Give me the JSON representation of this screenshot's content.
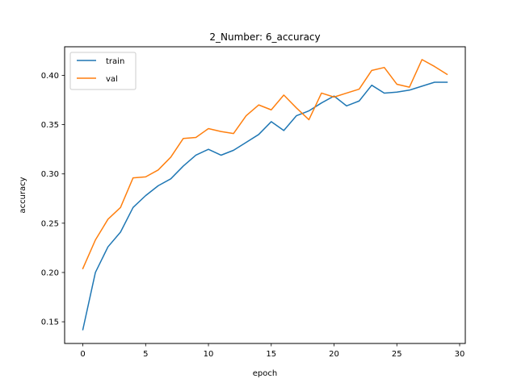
{
  "chart_data": {
    "type": "line",
    "title": "2_Number: 6_accuracy",
    "xlabel": "epoch",
    "ylabel": "accuracy",
    "xlim": [
      -1.45,
      30.45
    ],
    "ylim": [
      0.128,
      0.429
    ],
    "xticks": [
      0,
      5,
      10,
      15,
      20,
      25,
      30
    ],
    "yticks": [
      0.15,
      0.2,
      0.25,
      0.3,
      0.35,
      0.4
    ],
    "xtick_labels": [
      "0",
      "5",
      "10",
      "15",
      "20",
      "25",
      "30"
    ],
    "ytick_labels": [
      "0.15",
      "0.20",
      "0.25",
      "0.30",
      "0.35",
      "0.40"
    ],
    "grid": false,
    "legend_position": "top-left",
    "x": [
      0,
      1,
      2,
      3,
      4,
      5,
      6,
      7,
      8,
      9,
      10,
      11,
      12,
      13,
      14,
      15,
      16,
      17,
      18,
      19,
      20,
      21,
      22,
      23,
      24,
      25,
      26,
      27,
      28,
      29
    ],
    "series": [
      {
        "name": "train",
        "color": "#1f77b4",
        "values": [
          0.142,
          0.2,
          0.226,
          0.241,
          0.266,
          0.278,
          0.288,
          0.295,
          0.308,
          0.319,
          0.325,
          0.319,
          0.324,
          0.332,
          0.34,
          0.353,
          0.344,
          0.359,
          0.364,
          0.372,
          0.379,
          0.369,
          0.374,
          0.39,
          0.382,
          0.383,
          0.385,
          0.389,
          0.393,
          0.393
        ]
      },
      {
        "name": "val",
        "color": "#ff7f0e",
        "values": [
          0.204,
          0.233,
          0.254,
          0.266,
          0.296,
          0.297,
          0.304,
          0.317,
          0.336,
          0.337,
          0.346,
          0.343,
          0.341,
          0.359,
          0.37,
          0.365,
          0.38,
          0.367,
          0.355,
          0.382,
          0.378,
          0.382,
          0.386,
          0.405,
          0.408,
          0.391,
          0.388,
          0.416,
          0.409,
          0.401
        ]
      }
    ]
  }
}
